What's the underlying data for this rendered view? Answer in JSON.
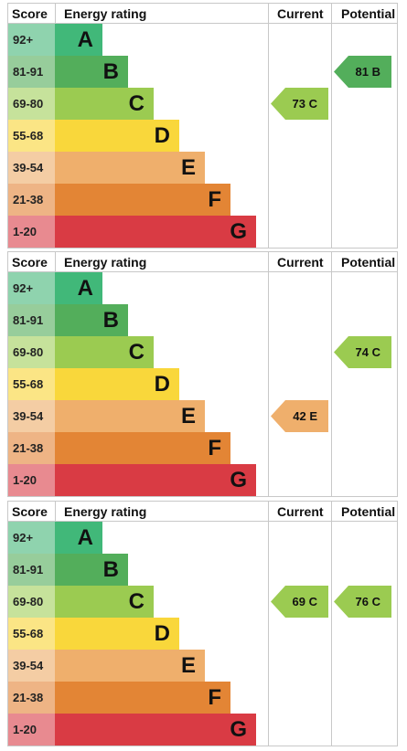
{
  "header": {
    "score": "Score",
    "rating": "Energy rating",
    "current": "Current",
    "potential": "Potential"
  },
  "bands": [
    {
      "score": "92+",
      "letter": "A",
      "color": "#41b879",
      "scoreBg": "#8fd3ae"
    },
    {
      "score": "81-91",
      "letter": "B",
      "color": "#53ae5b",
      "scoreBg": "#97cd9b"
    },
    {
      "score": "69-80",
      "letter": "C",
      "color": "#9bcb51",
      "scoreBg": "#c6e29b"
    },
    {
      "score": "55-68",
      "letter": "D",
      "color": "#f9d73b",
      "scoreBg": "#fbe585"
    },
    {
      "score": "39-54",
      "letter": "E",
      "color": "#efaf6c",
      "scoreBg": "#f4cda4"
    },
    {
      "score": "21-38",
      "letter": "F",
      "color": "#e38535",
      "scoreBg": "#eeb485"
    },
    {
      "score": "1-20",
      "letter": "G",
      "color": "#d93b44",
      "scoreBg": "#e88a90"
    }
  ],
  "chart_data": [
    {
      "type": "bar",
      "current": {
        "value": 73,
        "band": "C",
        "label": "73 C"
      },
      "potential": {
        "value": 81,
        "band": "B",
        "label": "81 B"
      }
    },
    {
      "type": "bar",
      "current": {
        "value": 42,
        "band": "E",
        "label": "42 E"
      },
      "potential": {
        "value": 74,
        "band": "C",
        "label": "74 C"
      }
    },
    {
      "type": "bar",
      "current": {
        "value": 69,
        "band": "C",
        "label": "69 C"
      },
      "potential": {
        "value": 76,
        "band": "C",
        "label": "76 C"
      }
    }
  ]
}
